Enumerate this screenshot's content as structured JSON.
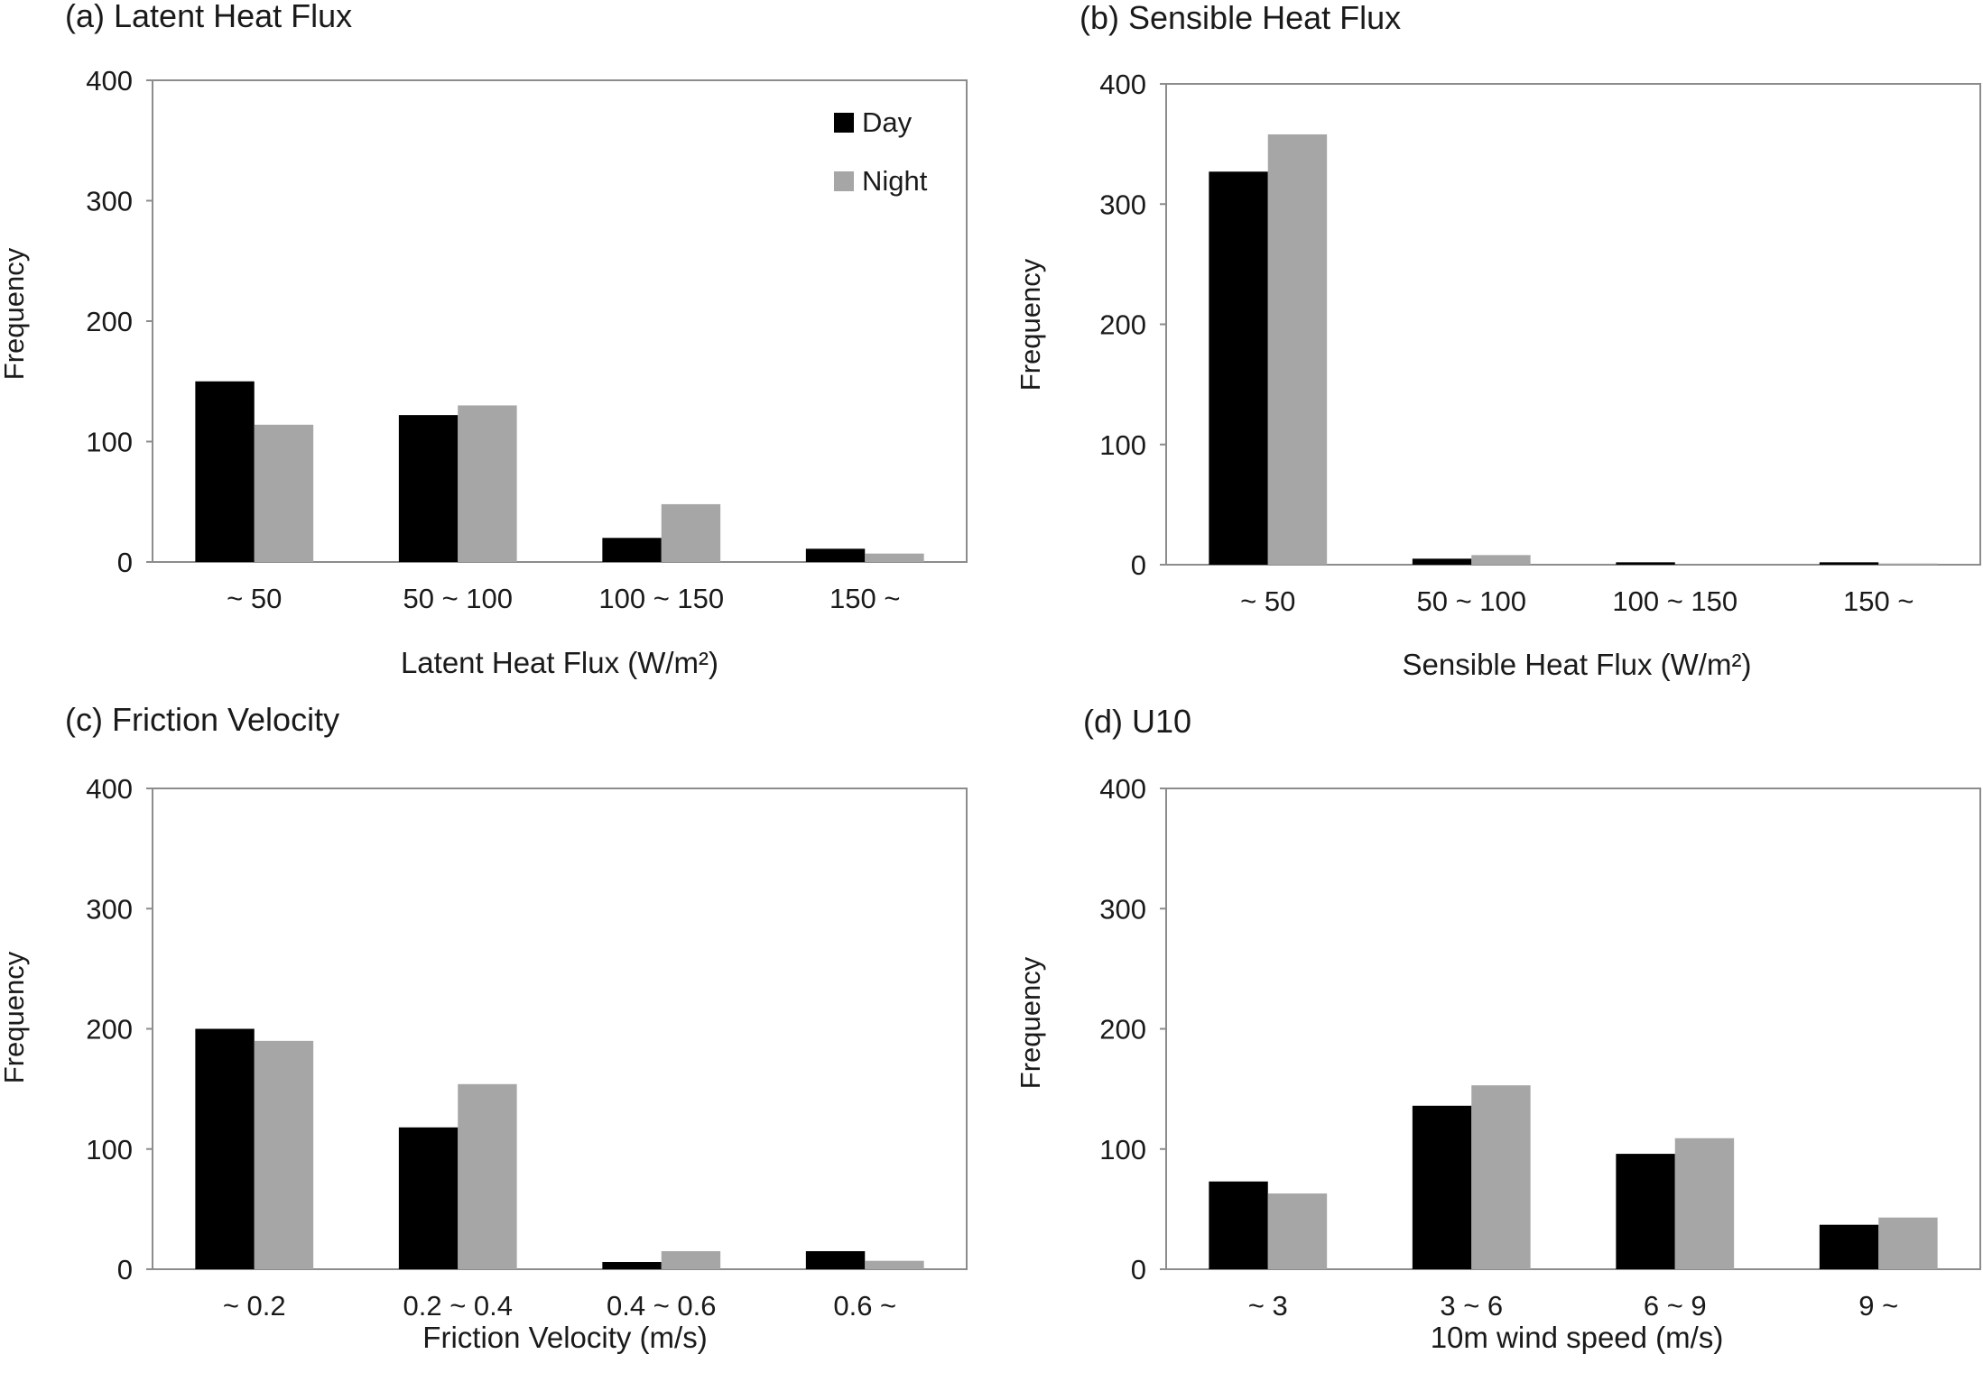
{
  "colors": {
    "day": "#000000",
    "night": "#a6a6a6",
    "frame": "#8c8c8c"
  },
  "legend": {
    "placement": "top-right",
    "entries": [
      "Day",
      "Night"
    ]
  },
  "chart_data": [
    {
      "type": "bar",
      "title": "(a) Latent Heat Flux",
      "xlabel": "Latent Heat Flux (W/m²)",
      "ylabel": "Frequency",
      "ylim": [
        0,
        400
      ],
      "yticks": [
        "0",
        "100",
        "200",
        "300",
        "400"
      ],
      "grid": false,
      "categories": [
        "~ 50",
        "50 ~ 100",
        "100 ~ 150",
        "150 ~"
      ],
      "series": [
        {
          "name": "Day",
          "values": [
            150,
            122,
            20,
            11
          ]
        },
        {
          "name": "Night",
          "values": [
            114,
            130,
            48,
            7
          ]
        }
      ]
    },
    {
      "type": "bar",
      "title": "(b) Sensible Heat Flux",
      "xlabel": "Sensible Heat Flux (W/m²)",
      "ylabel": "Frequency",
      "ylim": [
        0,
        400
      ],
      "yticks": [
        "0",
        "100",
        "200",
        "300",
        "400"
      ],
      "grid": false,
      "categories": [
        "~ 50",
        "50 ~ 100",
        "100 ~ 150",
        "150 ~"
      ],
      "series": [
        {
          "name": "Day",
          "values": [
            327,
            5,
            2,
            2
          ]
        },
        {
          "name": "Night",
          "values": [
            358,
            8,
            0,
            1
          ]
        }
      ]
    },
    {
      "type": "bar",
      "title": "(c) Friction Velocity",
      "xlabel": "Friction Velocity (m/s)",
      "ylabel": "Frequency",
      "ylim": [
        0,
        400
      ],
      "yticks": [
        "0",
        "100",
        "200",
        "300",
        "400"
      ],
      "grid": false,
      "categories": [
        "~ 0.2",
        "0.2 ~ 0.4",
        "0.4 ~ 0.6",
        "0.6 ~"
      ],
      "series": [
        {
          "name": "Day",
          "values": [
            200,
            118,
            6,
            15
          ]
        },
        {
          "name": "Night",
          "values": [
            190,
            154,
            15,
            7
          ]
        }
      ]
    },
    {
      "type": "bar",
      "title": "(d) U10",
      "xlabel": "10m wind speed (m/s)",
      "ylabel": "Frequency",
      "ylim": [
        0,
        400
      ],
      "yticks": [
        "0",
        "100",
        "200",
        "300",
        "400"
      ],
      "grid": false,
      "categories": [
        "~ 3",
        "3 ~ 6",
        "6 ~ 9",
        "9 ~"
      ],
      "series": [
        {
          "name": "Day",
          "values": [
            73,
            136,
            96,
            37
          ]
        },
        {
          "name": "Night",
          "values": [
            63,
            153,
            109,
            43
          ]
        }
      ]
    }
  ]
}
